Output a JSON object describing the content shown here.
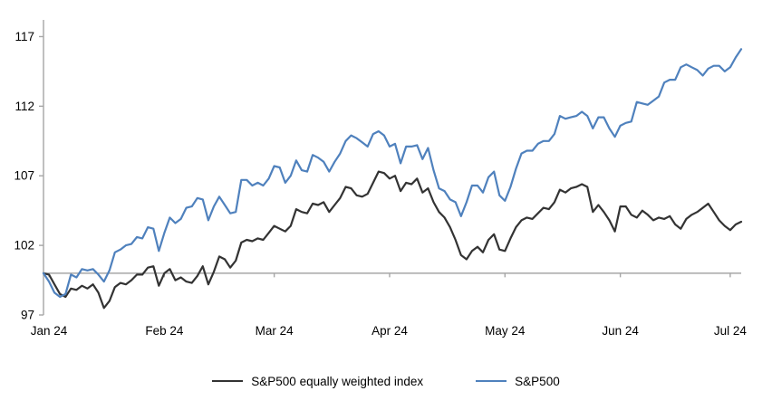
{
  "chart_data": {
    "type": "line",
    "title": "",
    "xlabel": "",
    "ylabel": "",
    "x_tick_labels": [
      "Jan 24",
      "Feb 24",
      "Mar 24",
      "Apr 24",
      "May 24",
      "Jun 24",
      "Jul 24"
    ],
    "x_tick_indices": [
      1,
      22,
      42,
      63,
      84,
      105,
      125
    ],
    "y_ticks": [
      97,
      102,
      107,
      112,
      117
    ],
    "ylim": [
      97,
      118.2
    ],
    "baseline_value": 100,
    "grid": "off",
    "legend_position": "bottom",
    "axis_color": "#a6a6a6",
    "text_color": "#000000",
    "series": [
      {
        "name": "S&P500 equally weighted index",
        "color": "#333333",
        "values": [
          100.0,
          99.9,
          99.2,
          98.5,
          98.3,
          98.9,
          98.8,
          99.1,
          98.9,
          99.2,
          98.6,
          97.5,
          98.0,
          99.0,
          99.3,
          99.2,
          99.5,
          99.9,
          99.9,
          100.4,
          100.5,
          99.1,
          100.0,
          100.3,
          99.5,
          99.7,
          99.4,
          99.3,
          99.8,
          100.5,
          99.2,
          100.1,
          101.2,
          101.0,
          100.4,
          100.9,
          102.2,
          102.4,
          102.3,
          102.5,
          102.4,
          102.9,
          103.4,
          103.2,
          103.0,
          103.4,
          104.6,
          104.4,
          104.3,
          105.0,
          104.9,
          105.1,
          104.4,
          104.9,
          105.4,
          106.2,
          106.1,
          105.6,
          105.5,
          105.7,
          106.5,
          107.3,
          107.2,
          106.8,
          107.0,
          105.9,
          106.5,
          106.4,
          106.8,
          105.8,
          106.1,
          105.1,
          104.4,
          104.0,
          103.3,
          102.4,
          101.3,
          101.0,
          101.6,
          101.9,
          101.5,
          102.4,
          102.8,
          101.7,
          101.6,
          102.5,
          103.3,
          103.8,
          104.0,
          103.9,
          104.3,
          104.7,
          104.6,
          105.1,
          106.0,
          105.8,
          106.1,
          106.2,
          106.4,
          106.2,
          104.4,
          104.9,
          104.4,
          103.8,
          103.0,
          104.8,
          104.8,
          104.2,
          104.0,
          104.5,
          104.2,
          103.8,
          104.0,
          103.9,
          104.1,
          103.5,
          103.2,
          103.9,
          104.2,
          104.4,
          104.7,
          105.0,
          104.4,
          103.8,
          103.4,
          103.1,
          103.5,
          103.7
        ]
      },
      {
        "name": "S&P500",
        "color": "#4f81bd",
        "values": [
          100.0,
          99.4,
          98.6,
          98.3,
          98.5,
          99.9,
          99.7,
          100.3,
          100.2,
          100.3,
          99.9,
          99.4,
          100.2,
          101.5,
          101.7,
          102.0,
          102.1,
          102.6,
          102.5,
          103.3,
          103.2,
          101.6,
          102.9,
          104.0,
          103.6,
          103.9,
          104.7,
          104.8,
          105.4,
          105.3,
          103.8,
          104.8,
          105.5,
          104.9,
          104.3,
          104.4,
          106.7,
          106.7,
          106.3,
          106.5,
          106.3,
          106.8,
          107.7,
          107.6,
          106.5,
          107.0,
          108.1,
          107.4,
          107.3,
          108.5,
          108.3,
          108.0,
          107.3,
          108.0,
          108.6,
          109.5,
          109.9,
          109.7,
          109.4,
          109.1,
          110.0,
          110.2,
          109.9,
          109.1,
          109.3,
          107.9,
          109.1,
          109.1,
          109.2,
          108.2,
          109.0,
          107.4,
          106.1,
          105.9,
          105.3,
          105.1,
          104.1,
          105.1,
          106.3,
          106.3,
          105.8,
          106.9,
          107.3,
          105.6,
          105.2,
          106.2,
          107.5,
          108.6,
          108.8,
          108.8,
          109.3,
          109.5,
          109.5,
          110.0,
          111.3,
          111.1,
          111.2,
          111.3,
          111.6,
          111.3,
          110.4,
          111.2,
          111.2,
          110.4,
          109.8,
          110.6,
          110.8,
          110.9,
          112.3,
          112.2,
          112.1,
          112.4,
          112.7,
          113.7,
          113.9,
          113.9,
          114.8,
          115.0,
          114.8,
          114.6,
          114.2,
          114.7,
          114.9,
          114.9,
          114.5,
          114.8,
          115.5,
          116.1
        ]
      }
    ]
  }
}
